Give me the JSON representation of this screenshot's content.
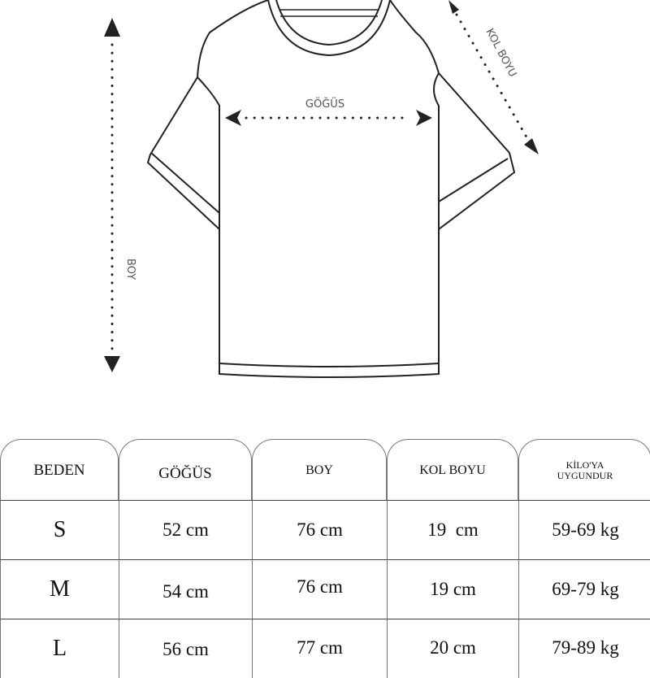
{
  "diagram": {
    "chest_label": "GÖĞÜS",
    "sleeve_label": "KOL BOYU",
    "length_label": "BOY"
  },
  "table": {
    "headers": [
      "BEDEN",
      "GÖĞÜS",
      "BOY",
      "KOL BOYU",
      "KİLO'YA",
      "UYGUNDUR"
    ],
    "rows": [
      [
        "S",
        "52 cm",
        "76 cm",
        "19  cm",
        "59-69 kg"
      ],
      [
        "M",
        "54 cm",
        "76 cm",
        "19 cm",
        "69-79 kg"
      ],
      [
        "L",
        "56 cm",
        "77 cm",
        "20 cm",
        "79-89 kg"
      ]
    ]
  }
}
